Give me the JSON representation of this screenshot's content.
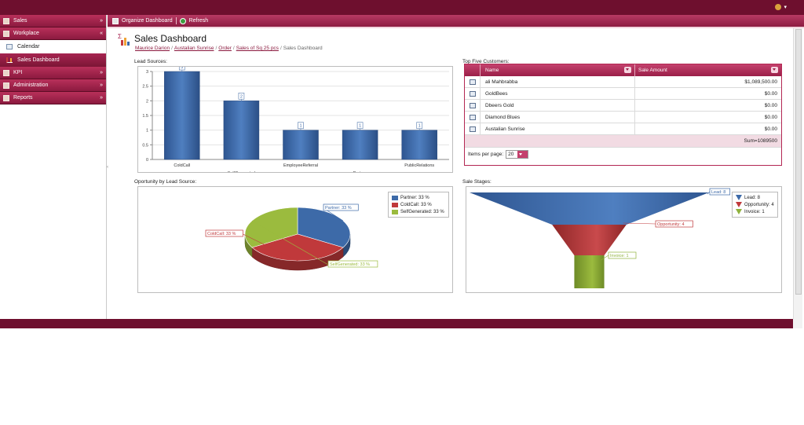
{
  "user": {
    "icon": "user-icon",
    "chevron": "▾"
  },
  "sidebar": {
    "sections": [
      {
        "label": "Sales",
        "chevron": "»"
      },
      {
        "label": "Workplace",
        "chevron": "«"
      }
    ],
    "items": [
      {
        "label": "Calendar"
      },
      {
        "label": "Sales Dashboard"
      }
    ],
    "lower_sections": [
      {
        "label": "KPI",
        "chevron": "»"
      },
      {
        "label": "Administration",
        "chevron": "»"
      },
      {
        "label": "Reports",
        "chevron": "»"
      }
    ]
  },
  "toolbar": {
    "organize_label": "Organize Dashboard",
    "refresh_label": "Refresh"
  },
  "page": {
    "title": "Sales Dashboard",
    "breadcrumb": [
      "Maurice Darion",
      "Austalian Sunrise",
      "Order",
      "Sales of Sq 25 pcs"
    ],
    "breadcrumb_current": "Sales Dashboard"
  },
  "panels": {
    "lead_sources": "Lead Sources:",
    "top_customers": "Top Five Customers:",
    "opportunity": "Oportunity by Lead Source:",
    "sale_stages": "Sale Stages:"
  },
  "grid": {
    "col_name": "Name",
    "col_amount": "Sale Amount",
    "rows": [
      {
        "name": "ali Mahbrabba",
        "amount": "$1,089,500.00"
      },
      {
        "name": "GoldBees",
        "amount": "$0.00"
      },
      {
        "name": "Dbeers Gold",
        "amount": "$0.00"
      },
      {
        "name": "Diamond Blues",
        "amount": "$0.00"
      },
      {
        "name": "Austalian Sunrise",
        "amount": "$0.00"
      }
    ],
    "sum": "Sum=1089500",
    "pager_label": "Items per page:",
    "pager_value": "20"
  },
  "chart_data": [
    {
      "type": "bar",
      "title": "Lead Sources:",
      "categories": [
        "ColdCall",
        "SelfGenerated",
        "EmployeeReferral",
        "Partner",
        "PublicRelations"
      ],
      "values": [
        3,
        2,
        1,
        1,
        1
      ],
      "ylim": [
        0,
        3
      ],
      "yticks": [
        "0",
        "0.5",
        "1",
        "1.5",
        "2",
        "2.5",
        "3"
      ],
      "grid": true,
      "color": "#3d6aa8"
    },
    {
      "type": "pie",
      "title": "Oportunity by Lead Source:",
      "slices": [
        {
          "name": "Partner",
          "value": 33,
          "label": "Partner: 33 %",
          "color": "#3d6aa8"
        },
        {
          "name": "ColdCall",
          "value": 33,
          "label": "ColdCall: 33 %",
          "color": "#c0393b"
        },
        {
          "name": "SelfGenerated",
          "value": 33,
          "label": "SelfGenerated: 33 %",
          "color": "#9bbb3e"
        }
      ],
      "legend": "top-right"
    },
    {
      "type": "funnel",
      "title": "Sale Stages:",
      "stages": [
        {
          "name": "Lead",
          "value": 8,
          "label": "Lead: 8",
          "color": "#3d6aa8"
        },
        {
          "name": "Opportunity",
          "value": 4,
          "label": "Opportunity: 4",
          "color": "#c0393b"
        },
        {
          "name": "Invoice",
          "value": 1,
          "label": "Invoice: 1",
          "color": "#8fb23c"
        }
      ],
      "legend": "top-right"
    }
  ]
}
